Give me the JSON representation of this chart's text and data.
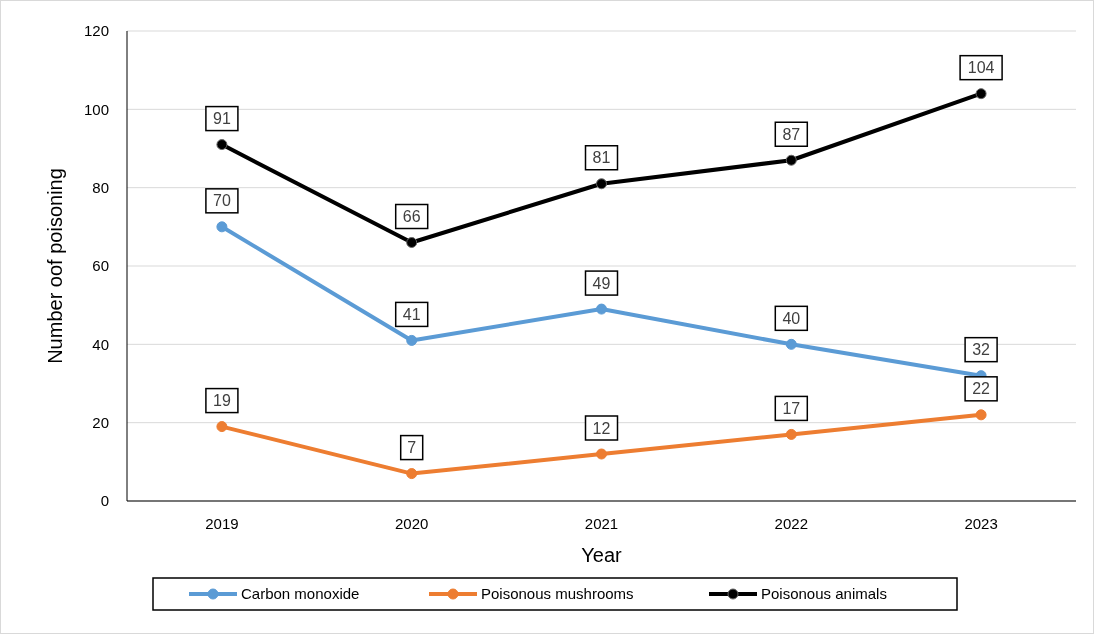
{
  "chart_data": {
    "type": "line",
    "xlabel": "Year",
    "ylabel": "Number oof poisoning",
    "categories": [
      "2019",
      "2020",
      "2021",
      "2022",
      "2023"
    ],
    "series": [
      {
        "name": "Carbon monoxide",
        "color": "#5b9bd5",
        "values": [
          70,
          41,
          49,
          40,
          32
        ]
      },
      {
        "name": "Poisonous mushrooms",
        "color": "#ed7d31",
        "values": [
          19,
          7,
          12,
          17,
          22
        ]
      },
      {
        "name": "Poisonous animals",
        "color": "#000000",
        "values": [
          91,
          66,
          81,
          87,
          104
        ]
      }
    ],
    "ylim": [
      0,
      120
    ],
    "yticks": [
      0,
      20,
      40,
      60,
      80,
      100,
      120
    ],
    "grid": "y",
    "legend": "bottom",
    "marker": "circle",
    "line_style": "solid",
    "data_labels": true
  }
}
